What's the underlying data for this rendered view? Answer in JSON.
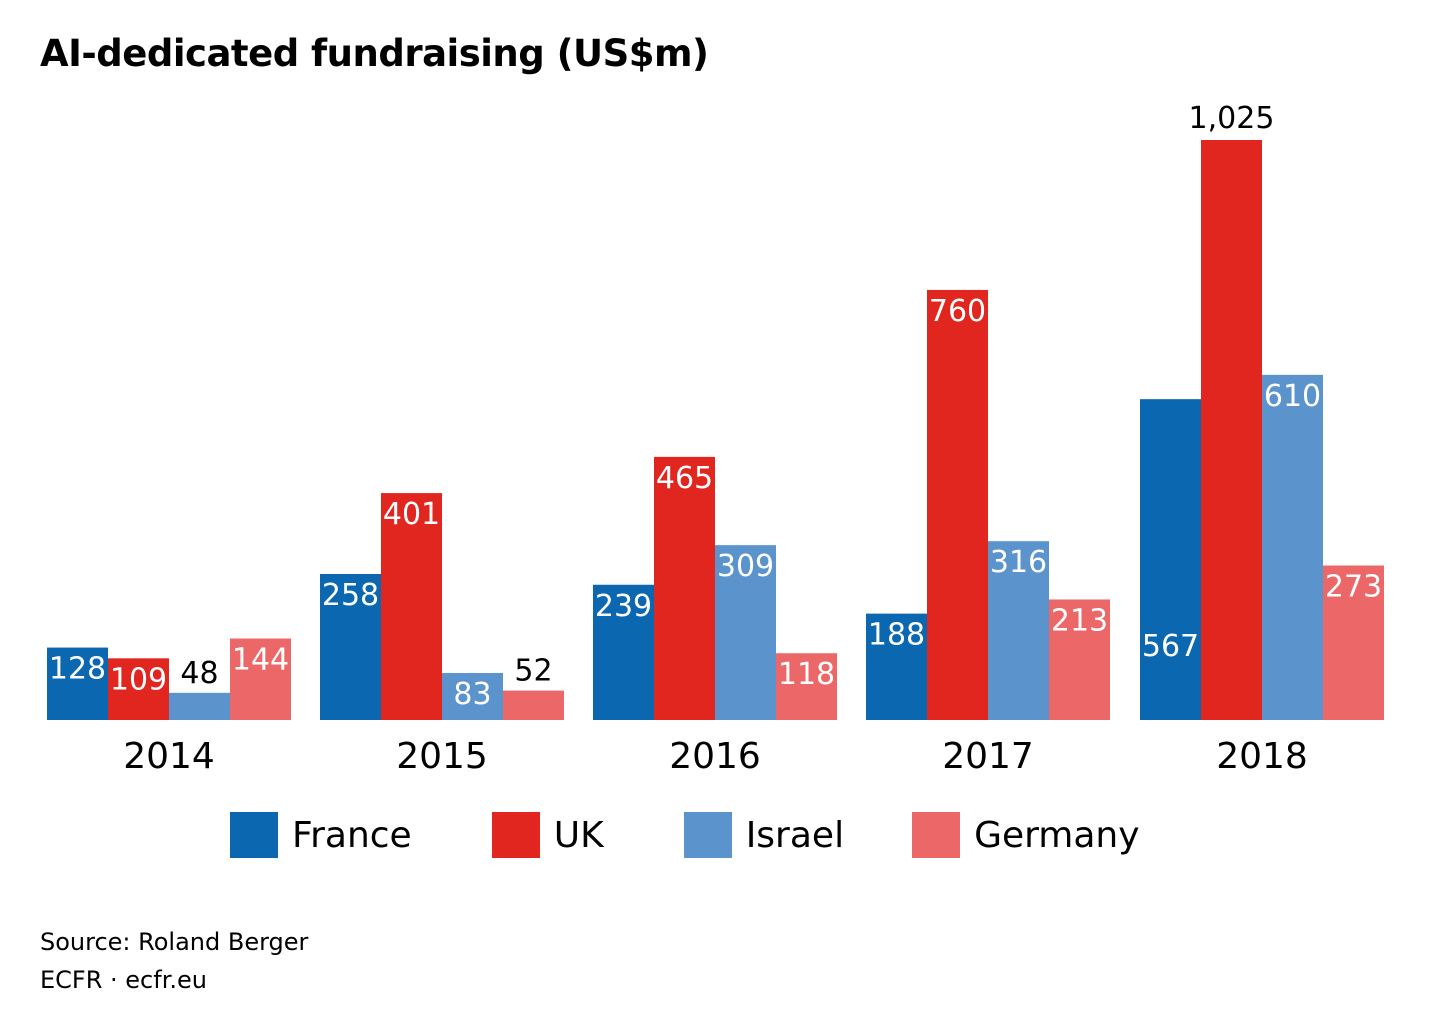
{
  "chart_data": {
    "type": "bar",
    "title": "AI-dedicated fundraising (US$m)",
    "categories": [
      "2014",
      "2015",
      "2016",
      "2017",
      "2018"
    ],
    "series": [
      {
        "name": "France",
        "color": "#0b68b0",
        "values": [
          128,
          258,
          239,
          188,
          567
        ]
      },
      {
        "name": "UK",
        "color": "#e0261f",
        "values": [
          109,
          401,
          465,
          760,
          1025
        ]
      },
      {
        "name": "Israel",
        "color": "#5b93cc",
        "values": [
          48,
          83,
          309,
          316,
          610
        ]
      },
      {
        "name": "Germany",
        "color": "#ec6767",
        "values": [
          144,
          52,
          118,
          213,
          273
        ]
      }
    ],
    "data_labels": [
      [
        "128",
        "258",
        "239",
        "188",
        "567"
      ],
      [
        "109",
        "401",
        "465",
        "760",
        "1,025"
      ],
      [
        "48",
        "83",
        "309",
        "316",
        "610"
      ],
      [
        "144",
        "52",
        "118",
        "213",
        "273"
      ]
    ],
    "xlabel": "",
    "ylabel": "",
    "ylim": [
      0,
      1025
    ],
    "grid": false,
    "legend": "bottom"
  },
  "footer": {
    "source": "Source: Roland Berger",
    "credit": "ECFR · ecfr.eu"
  }
}
